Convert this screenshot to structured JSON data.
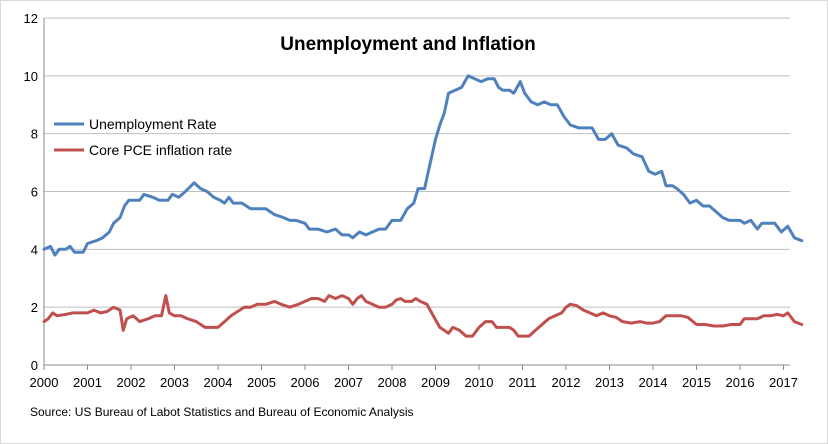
{
  "chart_data": {
    "type": "line",
    "title": "Unemployment and Inflation",
    "source": "Source: US Bureau of Labot Statistics and Bureau of Economic Analysis",
    "xlabel": "",
    "ylabel": "",
    "xlim": [
      2000,
      2017.42
    ],
    "ylim": [
      0,
      12
    ],
    "y_ticks": [
      "0",
      "2",
      "4",
      "6",
      "8",
      "10",
      "12"
    ],
    "x_ticks": [
      "2000",
      "2001",
      "2002",
      "2003",
      "2004",
      "2005",
      "2006",
      "2007",
      "2008",
      "2009",
      "2010",
      "2011",
      "2012",
      "2013",
      "2014",
      "2015",
      "2016",
      "2017"
    ],
    "grid": "horizontal",
    "legend_position": "left",
    "series": [
      {
        "name": "Unemployment Rate",
        "color": "#4f81bd",
        "points": [
          [
            2000.0,
            4.0
          ],
          [
            2000.15,
            4.1
          ],
          [
            2000.25,
            3.8
          ],
          [
            2000.35,
            4.0
          ],
          [
            2000.5,
            4.0
          ],
          [
            2000.6,
            4.1
          ],
          [
            2000.7,
            3.9
          ],
          [
            2000.9,
            3.9
          ],
          [
            2001.0,
            4.2
          ],
          [
            2001.2,
            4.3
          ],
          [
            2001.35,
            4.4
          ],
          [
            2001.5,
            4.6
          ],
          [
            2001.6,
            4.9
          ],
          [
            2001.75,
            5.1
          ],
          [
            2001.85,
            5.5
          ],
          [
            2001.95,
            5.7
          ],
          [
            2002.2,
            5.7
          ],
          [
            2002.3,
            5.9
          ],
          [
            2002.5,
            5.8
          ],
          [
            2002.65,
            5.7
          ],
          [
            2002.85,
            5.7
          ],
          [
            2002.95,
            5.9
          ],
          [
            2003.1,
            5.8
          ],
          [
            2003.25,
            6.0
          ],
          [
            2003.45,
            6.3
          ],
          [
            2003.6,
            6.1
          ],
          [
            2003.75,
            6.0
          ],
          [
            2003.9,
            5.8
          ],
          [
            2004.05,
            5.7
          ],
          [
            2004.15,
            5.6
          ],
          [
            2004.25,
            5.8
          ],
          [
            2004.35,
            5.6
          ],
          [
            2004.55,
            5.6
          ],
          [
            2004.75,
            5.4
          ],
          [
            2004.9,
            5.4
          ],
          [
            2005.1,
            5.4
          ],
          [
            2005.3,
            5.2
          ],
          [
            2005.5,
            5.1
          ],
          [
            2005.65,
            5.0
          ],
          [
            2005.8,
            5.0
          ],
          [
            2006.0,
            4.9
          ],
          [
            2006.1,
            4.7
          ],
          [
            2006.3,
            4.7
          ],
          [
            2006.5,
            4.6
          ],
          [
            2006.7,
            4.7
          ],
          [
            2006.85,
            4.5
          ],
          [
            2007.0,
            4.5
          ],
          [
            2007.1,
            4.4
          ],
          [
            2007.25,
            4.6
          ],
          [
            2007.4,
            4.5
          ],
          [
            2007.55,
            4.6
          ],
          [
            2007.7,
            4.7
          ],
          [
            2007.85,
            4.7
          ],
          [
            2008.0,
            5.0
          ],
          [
            2008.2,
            5.0
          ],
          [
            2008.35,
            5.4
          ],
          [
            2008.5,
            5.6
          ],
          [
            2008.6,
            6.1
          ],
          [
            2008.75,
            6.1
          ],
          [
            2008.85,
            6.8
          ],
          [
            2009.0,
            7.8
          ],
          [
            2009.1,
            8.3
          ],
          [
            2009.2,
            8.7
          ],
          [
            2009.3,
            9.4
          ],
          [
            2009.45,
            9.5
          ],
          [
            2009.6,
            9.6
          ],
          [
            2009.75,
            10.0
          ],
          [
            2009.9,
            9.9
          ],
          [
            2010.05,
            9.8
          ],
          [
            2010.2,
            9.9
          ],
          [
            2010.35,
            9.9
          ],
          [
            2010.45,
            9.6
          ],
          [
            2010.55,
            9.5
          ],
          [
            2010.7,
            9.5
          ],
          [
            2010.8,
            9.4
          ],
          [
            2010.95,
            9.8
          ],
          [
            2011.05,
            9.4
          ],
          [
            2011.2,
            9.1
          ],
          [
            2011.35,
            9.0
          ],
          [
            2011.5,
            9.1
          ],
          [
            2011.65,
            9.0
          ],
          [
            2011.8,
            9.0
          ],
          [
            2011.95,
            8.6
          ],
          [
            2012.1,
            8.3
          ],
          [
            2012.3,
            8.2
          ],
          [
            2012.6,
            8.2
          ],
          [
            2012.75,
            7.8
          ],
          [
            2012.9,
            7.8
          ],
          [
            2013.05,
            8.0
          ],
          [
            2013.2,
            7.6
          ],
          [
            2013.4,
            7.5
          ],
          [
            2013.55,
            7.3
          ],
          [
            2013.75,
            7.2
          ],
          [
            2013.9,
            6.7
          ],
          [
            2014.05,
            6.6
          ],
          [
            2014.2,
            6.7
          ],
          [
            2014.3,
            6.2
          ],
          [
            2014.45,
            6.2
          ],
          [
            2014.55,
            6.1
          ],
          [
            2014.7,
            5.9
          ],
          [
            2014.85,
            5.6
          ],
          [
            2015.0,
            5.7
          ],
          [
            2015.15,
            5.5
          ],
          [
            2015.3,
            5.5
          ],
          [
            2015.45,
            5.3
          ],
          [
            2015.6,
            5.1
          ],
          [
            2015.75,
            5.0
          ],
          [
            2016.0,
            5.0
          ],
          [
            2016.1,
            4.9
          ],
          [
            2016.25,
            5.0
          ],
          [
            2016.4,
            4.7
          ],
          [
            2016.5,
            4.9
          ],
          [
            2016.8,
            4.9
          ],
          [
            2016.95,
            4.6
          ],
          [
            2017.1,
            4.8
          ],
          [
            2017.25,
            4.4
          ],
          [
            2017.42,
            4.3
          ]
        ]
      },
      {
        "name": "Core PCE inflation rate",
        "color": "#c0504d",
        "points": [
          [
            2000.0,
            1.5
          ],
          [
            2000.1,
            1.6
          ],
          [
            2000.2,
            1.8
          ],
          [
            2000.3,
            1.7
          ],
          [
            2000.5,
            1.75
          ],
          [
            2000.65,
            1.8
          ],
          [
            2000.8,
            1.8
          ],
          [
            2001.0,
            1.8
          ],
          [
            2001.15,
            1.9
          ],
          [
            2001.3,
            1.8
          ],
          [
            2001.45,
            1.85
          ],
          [
            2001.6,
            2.0
          ],
          [
            2001.75,
            1.9
          ],
          [
            2001.82,
            1.2
          ],
          [
            2001.9,
            1.6
          ],
          [
            2002.05,
            1.7
          ],
          [
            2002.2,
            1.5
          ],
          [
            2002.4,
            1.6
          ],
          [
            2002.55,
            1.7
          ],
          [
            2002.7,
            1.7
          ],
          [
            2002.8,
            2.4
          ],
          [
            2002.88,
            1.8
          ],
          [
            2003.0,
            1.7
          ],
          [
            2003.15,
            1.7
          ],
          [
            2003.3,
            1.6
          ],
          [
            2003.5,
            1.5
          ],
          [
            2003.7,
            1.3
          ],
          [
            2003.85,
            1.3
          ],
          [
            2004.0,
            1.3
          ],
          [
            2004.15,
            1.5
          ],
          [
            2004.3,
            1.7
          ],
          [
            2004.5,
            1.9
          ],
          [
            2004.6,
            2.0
          ],
          [
            2004.75,
            2.0
          ],
          [
            2004.9,
            2.1
          ],
          [
            2005.1,
            2.1
          ],
          [
            2005.3,
            2.2
          ],
          [
            2005.45,
            2.1
          ],
          [
            2005.65,
            2.0
          ],
          [
            2005.85,
            2.1
          ],
          [
            2006.0,
            2.2
          ],
          [
            2006.15,
            2.3
          ],
          [
            2006.3,
            2.3
          ],
          [
            2006.45,
            2.2
          ],
          [
            2006.55,
            2.4
          ],
          [
            2006.7,
            2.3
          ],
          [
            2006.85,
            2.4
          ],
          [
            2007.0,
            2.3
          ],
          [
            2007.1,
            2.1
          ],
          [
            2007.2,
            2.3
          ],
          [
            2007.3,
            2.4
          ],
          [
            2007.4,
            2.2
          ],
          [
            2007.55,
            2.1
          ],
          [
            2007.7,
            2.0
          ],
          [
            2007.85,
            2.0
          ],
          [
            2008.0,
            2.1
          ],
          [
            2008.1,
            2.25
          ],
          [
            2008.2,
            2.3
          ],
          [
            2008.3,
            2.2
          ],
          [
            2008.45,
            2.2
          ],
          [
            2008.55,
            2.3
          ],
          [
            2008.65,
            2.2
          ],
          [
            2008.8,
            2.1
          ],
          [
            2008.95,
            1.7
          ],
          [
            2009.1,
            1.3
          ],
          [
            2009.2,
            1.2
          ],
          [
            2009.3,
            1.1
          ],
          [
            2009.4,
            1.3
          ],
          [
            2009.55,
            1.2
          ],
          [
            2009.7,
            1.0
          ],
          [
            2009.85,
            1.0
          ],
          [
            2010.0,
            1.3
          ],
          [
            2010.15,
            1.5
          ],
          [
            2010.3,
            1.5
          ],
          [
            2010.4,
            1.3
          ],
          [
            2010.55,
            1.3
          ],
          [
            2010.7,
            1.3
          ],
          [
            2010.8,
            1.2
          ],
          [
            2010.9,
            1.0
          ],
          [
            2011.0,
            1.0
          ],
          [
            2011.15,
            1.0
          ],
          [
            2011.3,
            1.2
          ],
          [
            2011.45,
            1.4
          ],
          [
            2011.6,
            1.6
          ],
          [
            2011.75,
            1.7
          ],
          [
            2011.9,
            1.8
          ],
          [
            2012.0,
            2.0
          ],
          [
            2012.1,
            2.1
          ],
          [
            2012.25,
            2.05
          ],
          [
            2012.4,
            1.9
          ],
          [
            2012.55,
            1.8
          ],
          [
            2012.7,
            1.7
          ],
          [
            2012.85,
            1.8
          ],
          [
            2013.0,
            1.7
          ],
          [
            2013.15,
            1.65
          ],
          [
            2013.3,
            1.5
          ],
          [
            2013.5,
            1.45
          ],
          [
            2013.7,
            1.5
          ],
          [
            2013.85,
            1.45
          ],
          [
            2014.0,
            1.45
          ],
          [
            2014.15,
            1.5
          ],
          [
            2014.3,
            1.7
          ],
          [
            2014.5,
            1.7
          ],
          [
            2014.65,
            1.7
          ],
          [
            2014.8,
            1.65
          ],
          [
            2015.0,
            1.4
          ],
          [
            2015.2,
            1.4
          ],
          [
            2015.4,
            1.35
          ],
          [
            2015.6,
            1.35
          ],
          [
            2015.8,
            1.4
          ],
          [
            2016.0,
            1.4
          ],
          [
            2016.1,
            1.6
          ],
          [
            2016.25,
            1.6
          ],
          [
            2016.4,
            1.6
          ],
          [
            2016.55,
            1.7
          ],
          [
            2016.7,
            1.7
          ],
          [
            2016.85,
            1.75
          ],
          [
            2017.0,
            1.7
          ],
          [
            2017.1,
            1.8
          ],
          [
            2017.25,
            1.5
          ],
          [
            2017.42,
            1.4
          ]
        ]
      }
    ]
  }
}
